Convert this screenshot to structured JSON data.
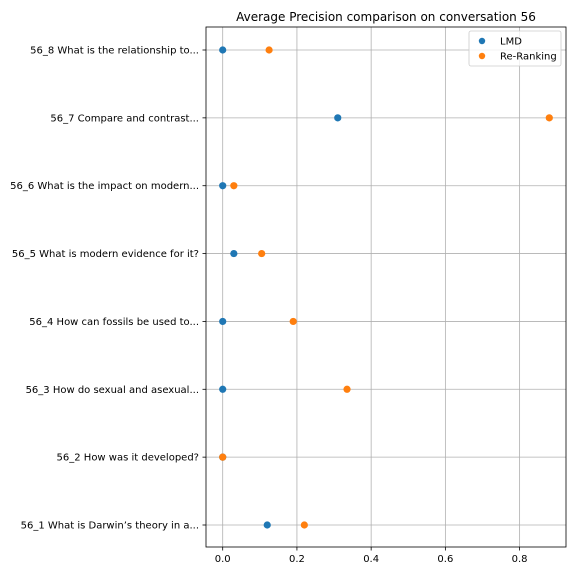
{
  "chart_data": {
    "type": "scatter",
    "title": "Average Precision comparison on conversation 56",
    "xlabel": "",
    "ylabel": "",
    "xlim": [
      -0.045,
      0.925
    ],
    "xticks": [
      0.0,
      0.2,
      0.4,
      0.6,
      0.8
    ],
    "xtick_labels": [
      "0.0",
      "0.2",
      "0.4",
      "0.6",
      "0.8"
    ],
    "grid": true,
    "legend_position": "top-right",
    "categories": [
      "56_8 What is the relationship to...",
      "56_7 Compare and contrast...",
      "56_6 What is the impact on modern...",
      "56_5 What is modern evidence for it?",
      "56_4 How can fossils be used to...",
      "56_3 How do sexual and asexual...",
      "56_2 How was it developed?",
      "56_1 What is Darwin’s theory in a..."
    ],
    "series": [
      {
        "name": "LMD",
        "color": "#1f77b4",
        "values": [
          0.0,
          0.31,
          0.0,
          0.03,
          0.0,
          0.0,
          0.0,
          0.12
        ]
      },
      {
        "name": "Re-Ranking",
        "color": "#ff7f0e",
        "values": [
          0.125,
          0.88,
          0.03,
          0.105,
          0.19,
          0.335,
          0.0,
          0.22
        ]
      }
    ]
  }
}
